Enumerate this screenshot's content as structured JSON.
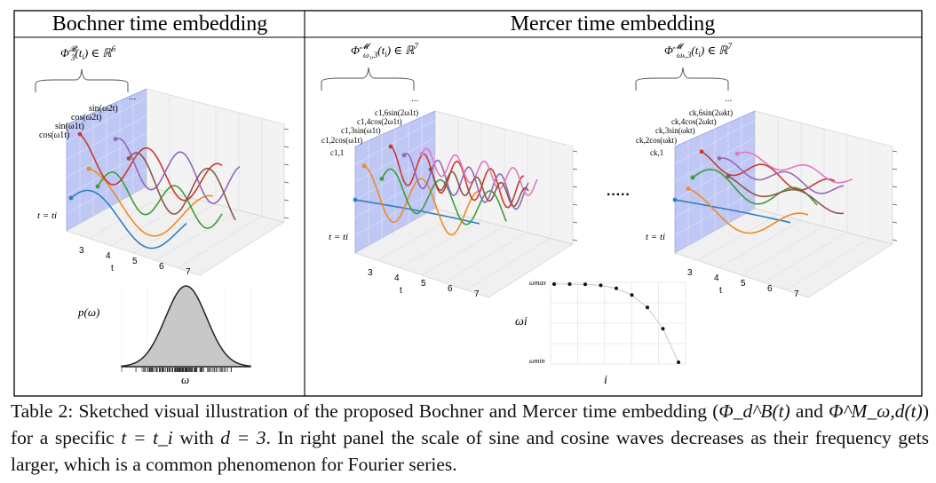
{
  "panels": {
    "left_title": "Bochner time embedding",
    "right_title": "Mercer time embedding"
  },
  "bochner": {
    "embedding_label": "Φ_3^B(t_i) ∈ ℝ^6",
    "wave_labels": [
      "sin(ω2t)",
      "cos(ω2t)",
      "sin(ω1t)",
      "cos(ω1t)"
    ],
    "ti_label": "t = ti",
    "ellipsis": "...",
    "t_ticks": [
      "3",
      "4",
      "5",
      "6",
      "7"
    ],
    "t_axis": "t",
    "density_ylabel": "p(ω)",
    "density_xlabel": "ω"
  },
  "mercer1": {
    "embedding_label": "Φ^M_ω1,3(t_i) ∈ ℝ^7",
    "wave_labels": [
      "c1,6sin(2ω1t)",
      "c1,4cos(2ω1t)",
      "c1,3sin(ω1t)",
      "c1,2cos(ω1t)",
      "c1,1"
    ],
    "ti_label": "t = ti",
    "ellipsis": "...",
    "t_ticks": [
      "3",
      "4",
      "5",
      "6",
      "7"
    ],
    "t_axis": "t"
  },
  "mercerk": {
    "embedding_label": "Φ^M_ωk,3(t_i) ∈ ℝ^7",
    "wave_labels": [
      "ck,6sin(2ωkt)",
      "ck,4cos(2ωkt)",
      "ck,3sin(ωkt)",
      "ck,2cos(ωkt)",
      "ck,1"
    ],
    "ti_label": "t = ti",
    "ellipsis": "...",
    "t_ticks": [
      "3",
      "4",
      "5",
      "6",
      "7"
    ],
    "t_axis": "t"
  },
  "between_dots": "·····",
  "frequency_plot": {
    "ymax_label": "ωmax",
    "ymin_label": "ωmin",
    "ylabel": "ωi",
    "xlabel": "i"
  },
  "caption": {
    "prefix": "Table 2: Sketched visual illustration of the proposed Bochner and Mercer time embedding (",
    "phi_b": "Φ_d^B(t)",
    "and": " and ",
    "phi_m": "Φ^M_ω,d(t)",
    "middle": ") for a specific ",
    "t_eq": "t = t_i",
    "with": " with ",
    "d_eq": "d = 3",
    "suffix": ". In right panel the scale of sine and cosine waves decreases as their frequency gets larger, which is a common phenomenon for Fourier series."
  },
  "colors": {
    "wave_blue": "#2f7fc1",
    "wave_orange": "#f08a24",
    "wave_green": "#3a9e3a",
    "wave_red": "#c9392e",
    "wave_purple": "#9467bd",
    "wave_brown": "#8c564b",
    "wave_pink": "#e377c2",
    "plane": "#aab4f0"
  }
}
